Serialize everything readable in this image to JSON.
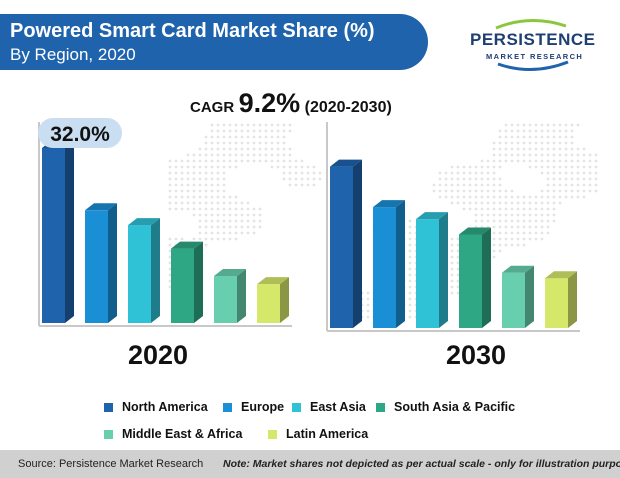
{
  "title": "Powered Smart Card Market Share (%)",
  "subtitle": "By Region, 2020",
  "logo": {
    "line1": "PERSISTENCE",
    "line2": "MARKET RESEARCH"
  },
  "cagr": {
    "label": "CAGR",
    "value": "9.2%",
    "period": "(2020-2030)"
  },
  "chart_data": {
    "type": "bar",
    "categories": [
      "North America",
      "Europe",
      "East Asia",
      "South Asia & Pacific",
      "Middle East & Africa",
      "Latin America"
    ],
    "colors": [
      "#1f63ad",
      "#1a8fd6",
      "#2fc1d6",
      "#2ea784",
      "#68cfae",
      "#d6e86a"
    ],
    "series": [
      {
        "name": "2020",
        "values": [
          32.0,
          20.6,
          17.9,
          13.6,
          8.6,
          7.1
        ]
      },
      {
        "name": "2030",
        "values": [
          29.5,
          22.1,
          19.9,
          17.1,
          10.1,
          9.1
        ]
      }
    ],
    "data_labels": [
      {
        "series": "2020",
        "category": "North America",
        "text": "32.0%"
      }
    ],
    "ylim": [
      0,
      34
    ],
    "legend_position": "bottom",
    "note": "Market shares not depicted as per actual scale - only for illustration purposes"
  },
  "footer": {
    "source": "Source: Persistence Market Research",
    "note": "Note: Market shares not depicted as per actual scale - only for illustration purposes"
  }
}
